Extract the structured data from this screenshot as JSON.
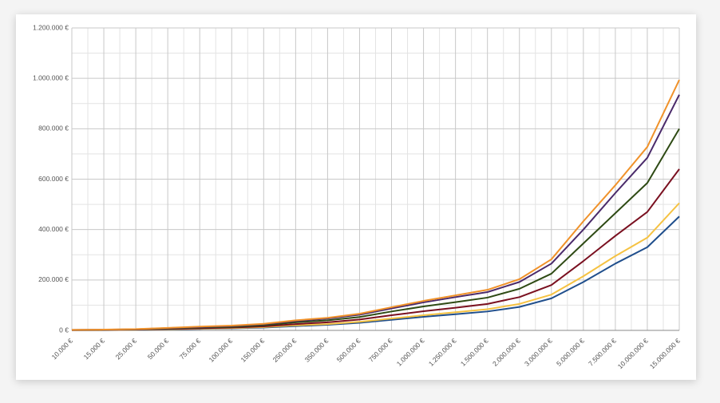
{
  "chart_data": {
    "type": "line",
    "categories": [
      "10.000 €",
      "15.000 €",
      "25.000 €",
      "50.000 €",
      "75.000 €",
      "100.000 €",
      "150.000 €",
      "250.000 €",
      "350.000 €",
      "500.000 €",
      "750.000 €",
      "1.000.000 €",
      "1.250.000 €",
      "1.500.000 €",
      "2.000.000 €",
      "3.000.000 €",
      "5.000.000 €",
      "7.500.000 €",
      "10.000.000 €",
      "15.000.000 €"
    ],
    "series": [
      {
        "color": "#1f4e8c",
        "values": [
          800,
          1200,
          2000,
          4000,
          6000,
          8000,
          11000,
          17000,
          22000,
          30000,
          42000,
          54000,
          64000,
          75000,
          93000,
          127000,
          192000,
          265000,
          330000,
          452000
        ]
      },
      {
        "color": "#f5c242",
        "values": [
          1000,
          1400,
          2400,
          4700,
          7000,
          9000,
          13000,
          20000,
          25000,
          34000,
          47000,
          60000,
          72000,
          84000,
          105000,
          142000,
          215000,
          295000,
          368000,
          505000
        ]
      },
      {
        "color": "#7a1020",
        "values": [
          1200,
          1800,
          3000,
          6000,
          8500,
          11000,
          16000,
          25000,
          32000,
          43000,
          60000,
          76000,
          90000,
          105000,
          132000,
          180000,
          275000,
          375000,
          470000,
          640000
        ]
      },
      {
        "color": "#2e4a14",
        "values": [
          1500,
          2300,
          3800,
          7500,
          11000,
          14000,
          20000,
          32000,
          40000,
          53000,
          75000,
          95000,
          112000,
          130000,
          165000,
          225000,
          345000,
          465000,
          585000,
          800000
        ]
      },
      {
        "color": "#4a2a6a",
        "values": [
          1800,
          2700,
          4500,
          9000,
          13000,
          17000,
          24000,
          37000,
          47000,
          62000,
          87000,
          111000,
          132000,
          152000,
          192000,
          265000,
          400000,
          545000,
          685000,
          935000
        ]
      },
      {
        "color": "#f0922a",
        "values": [
          2000,
          3000,
          5000,
          10000,
          15000,
          19000,
          26000,
          40000,
          50000,
          66000,
          92000,
          117000,
          139000,
          161000,
          203000,
          282000,
          433000,
          576000,
          728000,
          994000
        ]
      }
    ],
    "ylim": [
      0,
      1200000
    ],
    "yticks": [
      {
        "value": 0,
        "label": "0 €"
      },
      {
        "value": 200000,
        "label": "200.000 €"
      },
      {
        "value": 400000,
        "label": "400.000 €"
      },
      {
        "value": 600000,
        "label": "600.000 €"
      },
      {
        "value": 800000,
        "label": "800.000 €"
      },
      {
        "value": 1000000,
        "label": "1.000.000 €"
      },
      {
        "value": 1200000,
        "label": "1.200.000 €"
      }
    ],
    "grid": true
  }
}
